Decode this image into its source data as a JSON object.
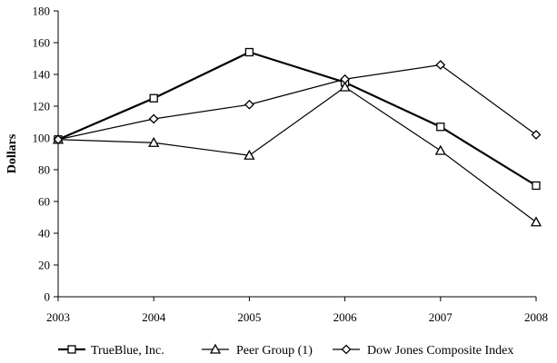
{
  "chart_data": {
    "type": "line",
    "title": "",
    "xlabel": "",
    "ylabel": "Dollars",
    "x": [
      "2003",
      "2004",
      "2005",
      "2006",
      "2007",
      "2008"
    ],
    "ylim": [
      0,
      180
    ],
    "yticks": [
      0,
      20,
      40,
      60,
      80,
      100,
      120,
      140,
      160,
      180
    ],
    "grid": false,
    "legend_position": "bottom",
    "series": [
      {
        "name": "TrueBlue, Inc.",
        "marker": "square",
        "values": [
          99,
          125,
          154,
          135,
          107,
          70
        ],
        "color": "#000000"
      },
      {
        "name": "Peer Group (1)",
        "marker": "triangle",
        "values": [
          99,
          97,
          89,
          132,
          92,
          47
        ],
        "color": "#000000"
      },
      {
        "name": "Dow Jones Composite Index",
        "marker": "diamond",
        "values": [
          99,
          112,
          121,
          137,
          146,
          102
        ],
        "color": "#000000"
      }
    ]
  }
}
